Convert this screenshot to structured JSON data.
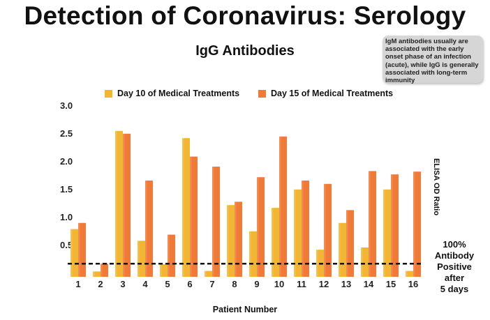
{
  "title": "Detection of Coronavirus: Serology",
  "note": "IgM antibodies usually are associated with the early onset phase of an infection (acute), while IgG is generally associated with long-term immunity",
  "side_annotation": [
    "100%",
    "Antibody",
    "Positive",
    "after",
    "5 days"
  ],
  "chart_data": {
    "type": "bar",
    "title": "IgG Antibodies",
    "xlabel": "Patient Number",
    "ylabel": "ELISA OD Ratio",
    "categories": [
      "1",
      "2",
      "3",
      "4",
      "5",
      "6",
      "7",
      "8",
      "9",
      "10",
      "11",
      "12",
      "13",
      "14",
      "15",
      "16"
    ],
    "series": [
      {
        "name": "Day 10 of Medical Treatments",
        "color": "#F2B634",
        "values": [
          0.78,
          0.02,
          2.54,
          0.57,
          0.15,
          2.41,
          0.03,
          1.21,
          0.74,
          1.16,
          1.49,
          0.41,
          0.89,
          0.45,
          1.49,
          0.03
        ]
      },
      {
        "name": "Day 15 of Medical Treatments",
        "color": "#F07A38",
        "values": [
          0.89,
          0.16,
          2.49,
          1.65,
          0.68,
          2.08,
          1.9,
          1.27,
          1.71,
          2.44,
          1.65,
          1.59,
          1.12,
          1.82,
          1.76,
          1.81
        ]
      }
    ],
    "yticks": [
      "0.5",
      "1.0",
      "1.5",
      "2.0",
      "2.5",
      "3.0"
    ],
    "ylim": [
      0,
      3.0
    ],
    "threshold": 0.16,
    "legend": "top",
    "grid": false
  }
}
